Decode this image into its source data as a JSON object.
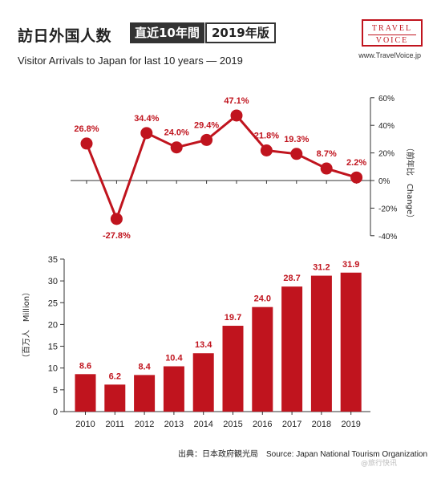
{
  "header": {
    "title_jp": "訪日外国人数",
    "badge_period": "直近10年間",
    "badge_edition": "2019年版",
    "subtitle": "Visitor Arrivals to Japan for last 10 years — 2019",
    "logo_line1": "TRAVEL",
    "logo_line2": "VOICE",
    "website": "www.TravelVoice.jp"
  },
  "source": "出典：日本政府観光局　Source: Japan National Tourism Organization",
  "watermark": "@旅行快讯",
  "colors": {
    "accent": "#c0141e",
    "dark": "#333333"
  },
  "chart_data": [
    {
      "type": "line",
      "x": [
        2010,
        2011,
        2012,
        2013,
        2014,
        2015,
        2016,
        2017,
        2018,
        2019
      ],
      "values": [
        26.8,
        -27.8,
        34.4,
        24.0,
        29.4,
        47.1,
        21.8,
        19.3,
        8.7,
        2.2
      ],
      "value_labels": [
        "26.8%",
        "-27.8%",
        "34.4%",
        "24.0%",
        "29.4%",
        "47.1%",
        "21.8%",
        "19.3%",
        "8.7%",
        "2.2%"
      ],
      "y_ticks": [
        "60%",
        "40%",
        "20%",
        "0%",
        "-20%",
        "-40%"
      ],
      "ylabel": "（前年比　Change）",
      "ylim": [
        -40,
        60
      ],
      "y_axis_side": "right",
      "grid": false
    },
    {
      "type": "bar",
      "categories": [
        "2010",
        "2011",
        "2012",
        "2013",
        "2014",
        "2015",
        "2016",
        "2017",
        "2018",
        "2019"
      ],
      "values": [
        8.6,
        6.2,
        8.4,
        10.4,
        13.4,
        19.7,
        24.0,
        28.7,
        31.2,
        31.9
      ],
      "value_labels": [
        "8.6",
        "6.2",
        "8.4",
        "10.4",
        "13.4",
        "19.7",
        "24.0",
        "28.7",
        "31.2",
        "31.9"
      ],
      "y_ticks": [
        "35",
        "30",
        "25",
        "20",
        "15",
        "10",
        "5",
        "0"
      ],
      "ylabel": "（百万人　Million）",
      "ylim": [
        0,
        35
      ],
      "y_axis_side": "left",
      "grid": false
    }
  ]
}
